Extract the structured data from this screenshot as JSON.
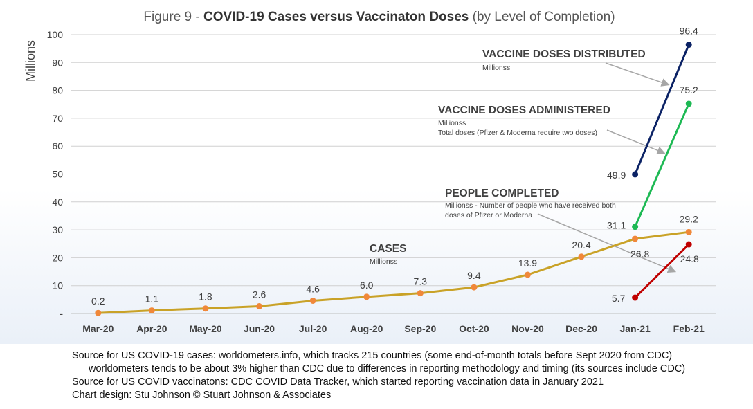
{
  "chart_data": {
    "type": "line",
    "title": {
      "prefix": "Figure 9 - ",
      "bold": "COVID-19 Cases versus Vaccinaton Doses",
      "suffix": " (by Level of Completion)"
    },
    "ylabel": "Millions",
    "xlabel": "",
    "ylim": [
      0,
      100
    ],
    "yticks": [
      "-",
      "10",
      "20",
      "30",
      "40",
      "50",
      "60",
      "70",
      "80",
      "90",
      "100"
    ],
    "grid": true,
    "categories": [
      "Mar-20",
      "Apr-20",
      "May-20",
      "Jun-20",
      "Jul-20",
      "Aug-20",
      "Sep-20",
      "Oct-20",
      "Nov-20",
      "Dec-20",
      "Jan-21",
      "Feb-21"
    ],
    "series": [
      {
        "name": "CASES",
        "note": "Millionss",
        "color": "#c9a227",
        "marker_color": "#f0883a",
        "values": [
          0.2,
          1.1,
          1.8,
          2.6,
          4.6,
          6.0,
          7.3,
          9.4,
          13.9,
          20.4,
          26.8,
          29.2
        ],
        "labels": [
          "0.2",
          "1.1",
          "1.8",
          "2.6",
          "4.6",
          "6.0",
          "7.3",
          "9.4",
          "13.9",
          "20.4",
          "26.8",
          "29.2"
        ]
      },
      {
        "name": "VACCINE DOSES DISTRIBUTED",
        "note": "Millionss",
        "color": "#0b2265",
        "marker_color": "#0b2265",
        "values": [
          null,
          null,
          null,
          null,
          null,
          null,
          null,
          null,
          null,
          null,
          49.9,
          96.4
        ],
        "labels": [
          "",
          "",
          "",
          "",
          "",
          "",
          "",
          "",
          "",
          "",
          "49.9",
          "96.4"
        ]
      },
      {
        "name": "VACCINE DOSES ADMINISTERED",
        "note": "Millionss",
        "note2": "Total doses (Pfizer & Moderna require two doses)",
        "color": "#1db954",
        "marker_color": "#1db954",
        "values": [
          null,
          null,
          null,
          null,
          null,
          null,
          null,
          null,
          null,
          null,
          31.1,
          75.2
        ],
        "labels": [
          "",
          "",
          "",
          "",
          "",
          "",
          "",
          "",
          "",
          "",
          "31.1",
          "75.2"
        ]
      },
      {
        "name": "PEOPLE COMPLETED",
        "note": "Millionss - Number of people who have received both",
        "note2": "doses of Pfizer or Moderna",
        "color": "#c00000",
        "marker_color": "#c00000",
        "values": [
          null,
          null,
          null,
          null,
          null,
          null,
          null,
          null,
          null,
          null,
          5.7,
          24.8
        ],
        "labels": [
          "",
          "",
          "",
          "",
          "",
          "",
          "",
          "",
          "",
          "",
          "5.7",
          "24.8"
        ]
      }
    ]
  },
  "sources": {
    "line1": "Source for US COVID-19 cases: worldometers.info, which tracks 215 countries  (some end-of-month totals before Sept 2020 from CDC)",
    "line2": "worldometers tends to be about 3% higher than CDC due to differences in reporting methodology and timing (its sources include CDC)",
    "line3": "Source for US COVID vaccinatons: CDC COVID Data Tracker, which started reporting vaccination data in January 2021",
    "line4": "Chart design: Stu Johnson © Stuart Johnson & Associates"
  }
}
